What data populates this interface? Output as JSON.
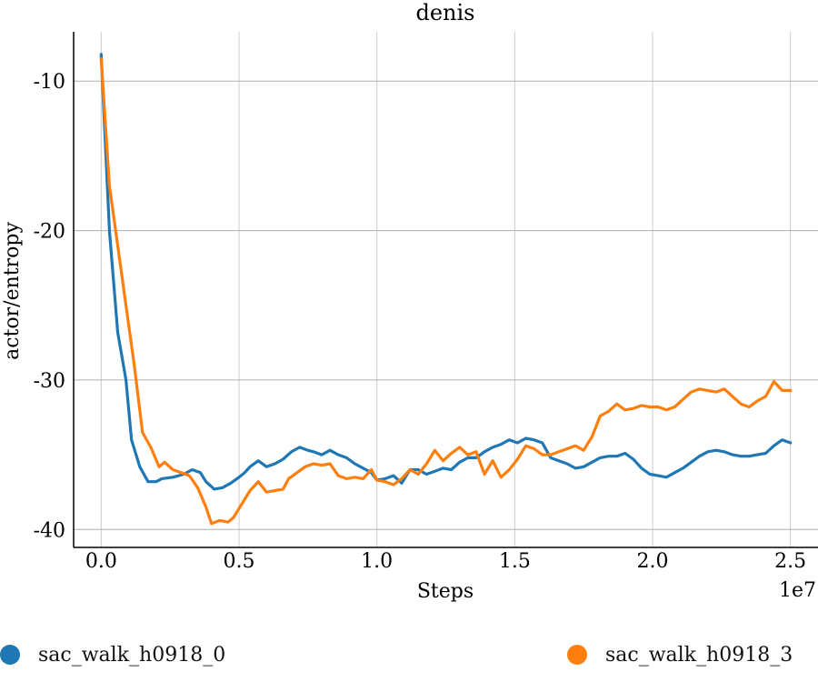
{
  "chart_data": {
    "type": "line",
    "title": "denis",
    "xlabel": "Steps",
    "ylabel": "actor/entropy",
    "x_offset_label": "1e7",
    "xlim": [
      -0.1,
      2.6
    ],
    "ylim": [
      -41.2,
      -6.7
    ],
    "x_ticks": [
      0.0,
      0.5,
      1.0,
      1.5,
      2.0,
      2.5
    ],
    "x_tick_labels": [
      "0.0",
      "0.5",
      "1.0",
      "1.5",
      "2.0",
      "2.5"
    ],
    "y_ticks": [
      -10,
      -20,
      -30,
      -40
    ],
    "y_tick_labels": [
      "-10",
      "-20",
      "-30",
      "-40"
    ],
    "grid": true,
    "legend_position": "bottom",
    "series": [
      {
        "name": "sac_walk_h0918_0",
        "color": "#1f77b4",
        "x": [
          0.0,
          0.03,
          0.06,
          0.09,
          0.11,
          0.14,
          0.17,
          0.2,
          0.22,
          0.26,
          0.3,
          0.33,
          0.36,
          0.38,
          0.41,
          0.44,
          0.47,
          0.5,
          0.52,
          0.54,
          0.57,
          0.6,
          0.63,
          0.66,
          0.69,
          0.72,
          0.75,
          0.77,
          0.8,
          0.83,
          0.86,
          0.89,
          0.92,
          0.95,
          0.98,
          1.0,
          1.03,
          1.06,
          1.09,
          1.12,
          1.15,
          1.18,
          1.21,
          1.24,
          1.27,
          1.3,
          1.33,
          1.36,
          1.39,
          1.42,
          1.45,
          1.48,
          1.51,
          1.54,
          1.57,
          1.6,
          1.63,
          1.66,
          1.69,
          1.72,
          1.75,
          1.78,
          1.81,
          1.84,
          1.87,
          1.9,
          1.93,
          1.96,
          1.99,
          2.02,
          2.05,
          2.08,
          2.11,
          2.14,
          2.17,
          2.2,
          2.23,
          2.26,
          2.29,
          2.32,
          2.35,
          2.38,
          2.41,
          2.44,
          2.47,
          2.5
        ],
        "y": [
          -8.2,
          -20.0,
          -26.8,
          -30.0,
          -34.0,
          -35.8,
          -36.8,
          -36.8,
          -36.6,
          -36.5,
          -36.3,
          -36.0,
          -36.2,
          -36.8,
          -37.3,
          -37.2,
          -36.9,
          -36.5,
          -36.2,
          -35.8,
          -35.4,
          -35.8,
          -35.6,
          -35.3,
          -34.8,
          -34.5,
          -34.7,
          -34.8,
          -35.0,
          -34.7,
          -35.0,
          -35.2,
          -35.6,
          -35.9,
          -36.2,
          -36.7,
          -36.6,
          -36.4,
          -36.9,
          -36.0,
          -36.0,
          -36.3,
          -36.1,
          -35.9,
          -36.0,
          -35.5,
          -35.2,
          -35.2,
          -34.8,
          -34.5,
          -34.3,
          -34.0,
          -34.2,
          -33.9,
          -34.0,
          -34.2,
          -35.2,
          -35.4,
          -35.6,
          -35.9,
          -35.8,
          -35.5,
          -35.2,
          -35.1,
          -35.1,
          -34.9,
          -35.3,
          -35.9,
          -36.3,
          -36.4,
          -36.5,
          -36.2,
          -35.9,
          -35.5,
          -35.1,
          -34.8,
          -34.7,
          -34.8,
          -35.0,
          -35.1,
          -35.1,
          -35.0,
          -34.9,
          -34.4,
          -34.0,
          -34.2
        ]
      },
      {
        "name": "sac_walk_h0918_3",
        "color": "#ff7f0e",
        "x": [
          0.0,
          0.03,
          0.06,
          0.09,
          0.12,
          0.15,
          0.18,
          0.21,
          0.23,
          0.26,
          0.29,
          0.32,
          0.35,
          0.38,
          0.4,
          0.43,
          0.46,
          0.48,
          0.51,
          0.54,
          0.57,
          0.6,
          0.63,
          0.66,
          0.68,
          0.71,
          0.74,
          0.77,
          0.8,
          0.83,
          0.86,
          0.89,
          0.92,
          0.95,
          0.98,
          1.0,
          1.03,
          1.06,
          1.09,
          1.12,
          1.15,
          1.18,
          1.21,
          1.24,
          1.27,
          1.3,
          1.33,
          1.36,
          1.39,
          1.42,
          1.45,
          1.48,
          1.51,
          1.54,
          1.57,
          1.6,
          1.63,
          1.66,
          1.69,
          1.72,
          1.75,
          1.78,
          1.81,
          1.84,
          1.87,
          1.9,
          1.93,
          1.96,
          1.99,
          2.02,
          2.05,
          2.08,
          2.11,
          2.14,
          2.17,
          2.2,
          2.23,
          2.26,
          2.29,
          2.32,
          2.35,
          2.38,
          2.41,
          2.44,
          2.47,
          2.5
        ],
        "y": [
          -8.5,
          -17.0,
          -21.0,
          -25.0,
          -29.0,
          -33.5,
          -34.5,
          -35.8,
          -35.5,
          -36.0,
          -36.2,
          -36.4,
          -37.2,
          -38.5,
          -39.6,
          -39.4,
          -39.5,
          -39.2,
          -38.3,
          -37.4,
          -36.8,
          -37.5,
          -37.4,
          -37.3,
          -36.6,
          -36.2,
          -35.8,
          -35.6,
          -35.7,
          -35.6,
          -36.4,
          -36.6,
          -36.5,
          -36.6,
          -36.0,
          -36.7,
          -36.8,
          -37.0,
          -36.6,
          -36.0,
          -36.3,
          -35.6,
          -34.7,
          -35.4,
          -34.9,
          -34.5,
          -35.0,
          -34.8,
          -36.3,
          -35.4,
          -36.5,
          -36.0,
          -35.3,
          -34.4,
          -34.6,
          -35.0,
          -35.0,
          -34.8,
          -34.6,
          -34.4,
          -34.7,
          -33.8,
          -32.4,
          -32.1,
          -31.6,
          -32.0,
          -31.9,
          -31.7,
          -31.8,
          -31.8,
          -32.0,
          -31.8,
          -31.3,
          -30.8,
          -30.6,
          -30.7,
          -30.8,
          -30.6,
          -31.1,
          -31.6,
          -31.8,
          -31.4,
          -31.1,
          -30.1,
          -30.7,
          -30.7
        ]
      }
    ]
  }
}
